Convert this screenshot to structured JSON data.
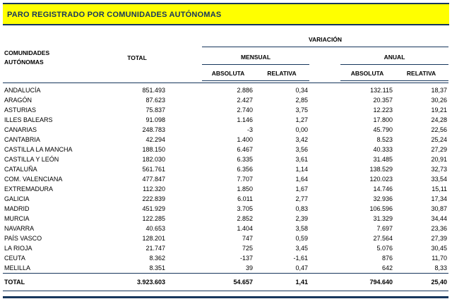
{
  "title": "PARO REGISTRADO POR COMUNIDADES AUTÓNOMAS",
  "colors": {
    "accent_navy": "#16365C",
    "title_background": "#FFFF00"
  },
  "table": {
    "headers": {
      "region_line1": "COMUNIDADES",
      "region_line2": "AUTÓNOMAS",
      "total": "TOTAL",
      "variacion": "VARIACIÓN",
      "mensual": "MENSUAL",
      "anual": "ANUAL",
      "absoluta": "ABSOLUTA",
      "relativa": "RELATIVA"
    },
    "rows": [
      {
        "name": "ANDALUCÍA",
        "total": "851.493",
        "m_abs": "2.886",
        "m_rel": "0,34",
        "a_abs": "132.115",
        "a_rel": "18,37"
      },
      {
        "name": "ARAGÓN",
        "total": "87.623",
        "m_abs": "2.427",
        "m_rel": "2,85",
        "a_abs": "20.357",
        "a_rel": "30,26"
      },
      {
        "name": "ASTURIAS",
        "total": "75.837",
        "m_abs": "2.740",
        "m_rel": "3,75",
        "a_abs": "12.223",
        "a_rel": "19,21"
      },
      {
        "name": "ILLES BALEARS",
        "total": "91.098",
        "m_abs": "1.146",
        "m_rel": "1,27",
        "a_abs": "17.800",
        "a_rel": "24,28"
      },
      {
        "name": "CANARIAS",
        "total": "248.783",
        "m_abs": "-3",
        "m_rel": "0,00",
        "a_abs": "45.790",
        "a_rel": "22,56"
      },
      {
        "name": "CANTABRIA",
        "total": "42.294",
        "m_abs": "1.400",
        "m_rel": "3,42",
        "a_abs": "8.523",
        "a_rel": "25,24"
      },
      {
        "name": "CASTILLA LA MANCHA",
        "total": "188.150",
        "m_abs": "6.467",
        "m_rel": "3,56",
        "a_abs": "40.333",
        "a_rel": "27,29"
      },
      {
        "name": "CASTILLA Y LEÓN",
        "total": "182.030",
        "m_abs": "6.335",
        "m_rel": "3,61",
        "a_abs": "31.485",
        "a_rel": "20,91"
      },
      {
        "name": "CATALUÑA",
        "total": "561.761",
        "m_abs": "6.356",
        "m_rel": "1,14",
        "a_abs": "138.529",
        "a_rel": "32,73"
      },
      {
        "name": "COM. VALENCIANA",
        "total": "477.847",
        "m_abs": "7.707",
        "m_rel": "1,64",
        "a_abs": "120.023",
        "a_rel": "33,54"
      },
      {
        "name": "EXTREMADURA",
        "total": "112.320",
        "m_abs": "1.850",
        "m_rel": "1,67",
        "a_abs": "14.746",
        "a_rel": "15,11"
      },
      {
        "name": "GALICIA",
        "total": "222.839",
        "m_abs": "6.011",
        "m_rel": "2,77",
        "a_abs": "32.936",
        "a_rel": "17,34"
      },
      {
        "name": "MADRID",
        "total": "451.929",
        "m_abs": "3.705",
        "m_rel": "0,83",
        "a_abs": "106.596",
        "a_rel": "30,87"
      },
      {
        "name": "MURCIA",
        "total": "122.285",
        "m_abs": "2.852",
        "m_rel": "2,39",
        "a_abs": "31.329",
        "a_rel": "34,44"
      },
      {
        "name": "NAVARRA",
        "total": "40.653",
        "m_abs": "1.404",
        "m_rel": "3,58",
        "a_abs": "7.697",
        "a_rel": "23,36"
      },
      {
        "name": "PAÍS VASCO",
        "total": "128.201",
        "m_abs": "747",
        "m_rel": "0,59",
        "a_abs": "27.564",
        "a_rel": "27,39"
      },
      {
        "name": "LA RIOJA",
        "total": "21.747",
        "m_abs": "725",
        "m_rel": "3,45",
        "a_abs": "5.076",
        "a_rel": "30,45"
      },
      {
        "name": "CEUTA",
        "total": "8.362",
        "m_abs": "-137",
        "m_rel": "-1,61",
        "a_abs": "876",
        "a_rel": "11,70"
      },
      {
        "name": "MELILLA",
        "total": "8.351",
        "m_abs": "39",
        "m_rel": "0,47",
        "a_abs": "642",
        "a_rel": "8,33"
      }
    ],
    "total_row": {
      "name": "TOTAL",
      "total": "3.923.603",
      "m_abs": "54.657",
      "m_rel": "1,41",
      "a_abs": "794.640",
      "a_rel": "25,40"
    }
  }
}
